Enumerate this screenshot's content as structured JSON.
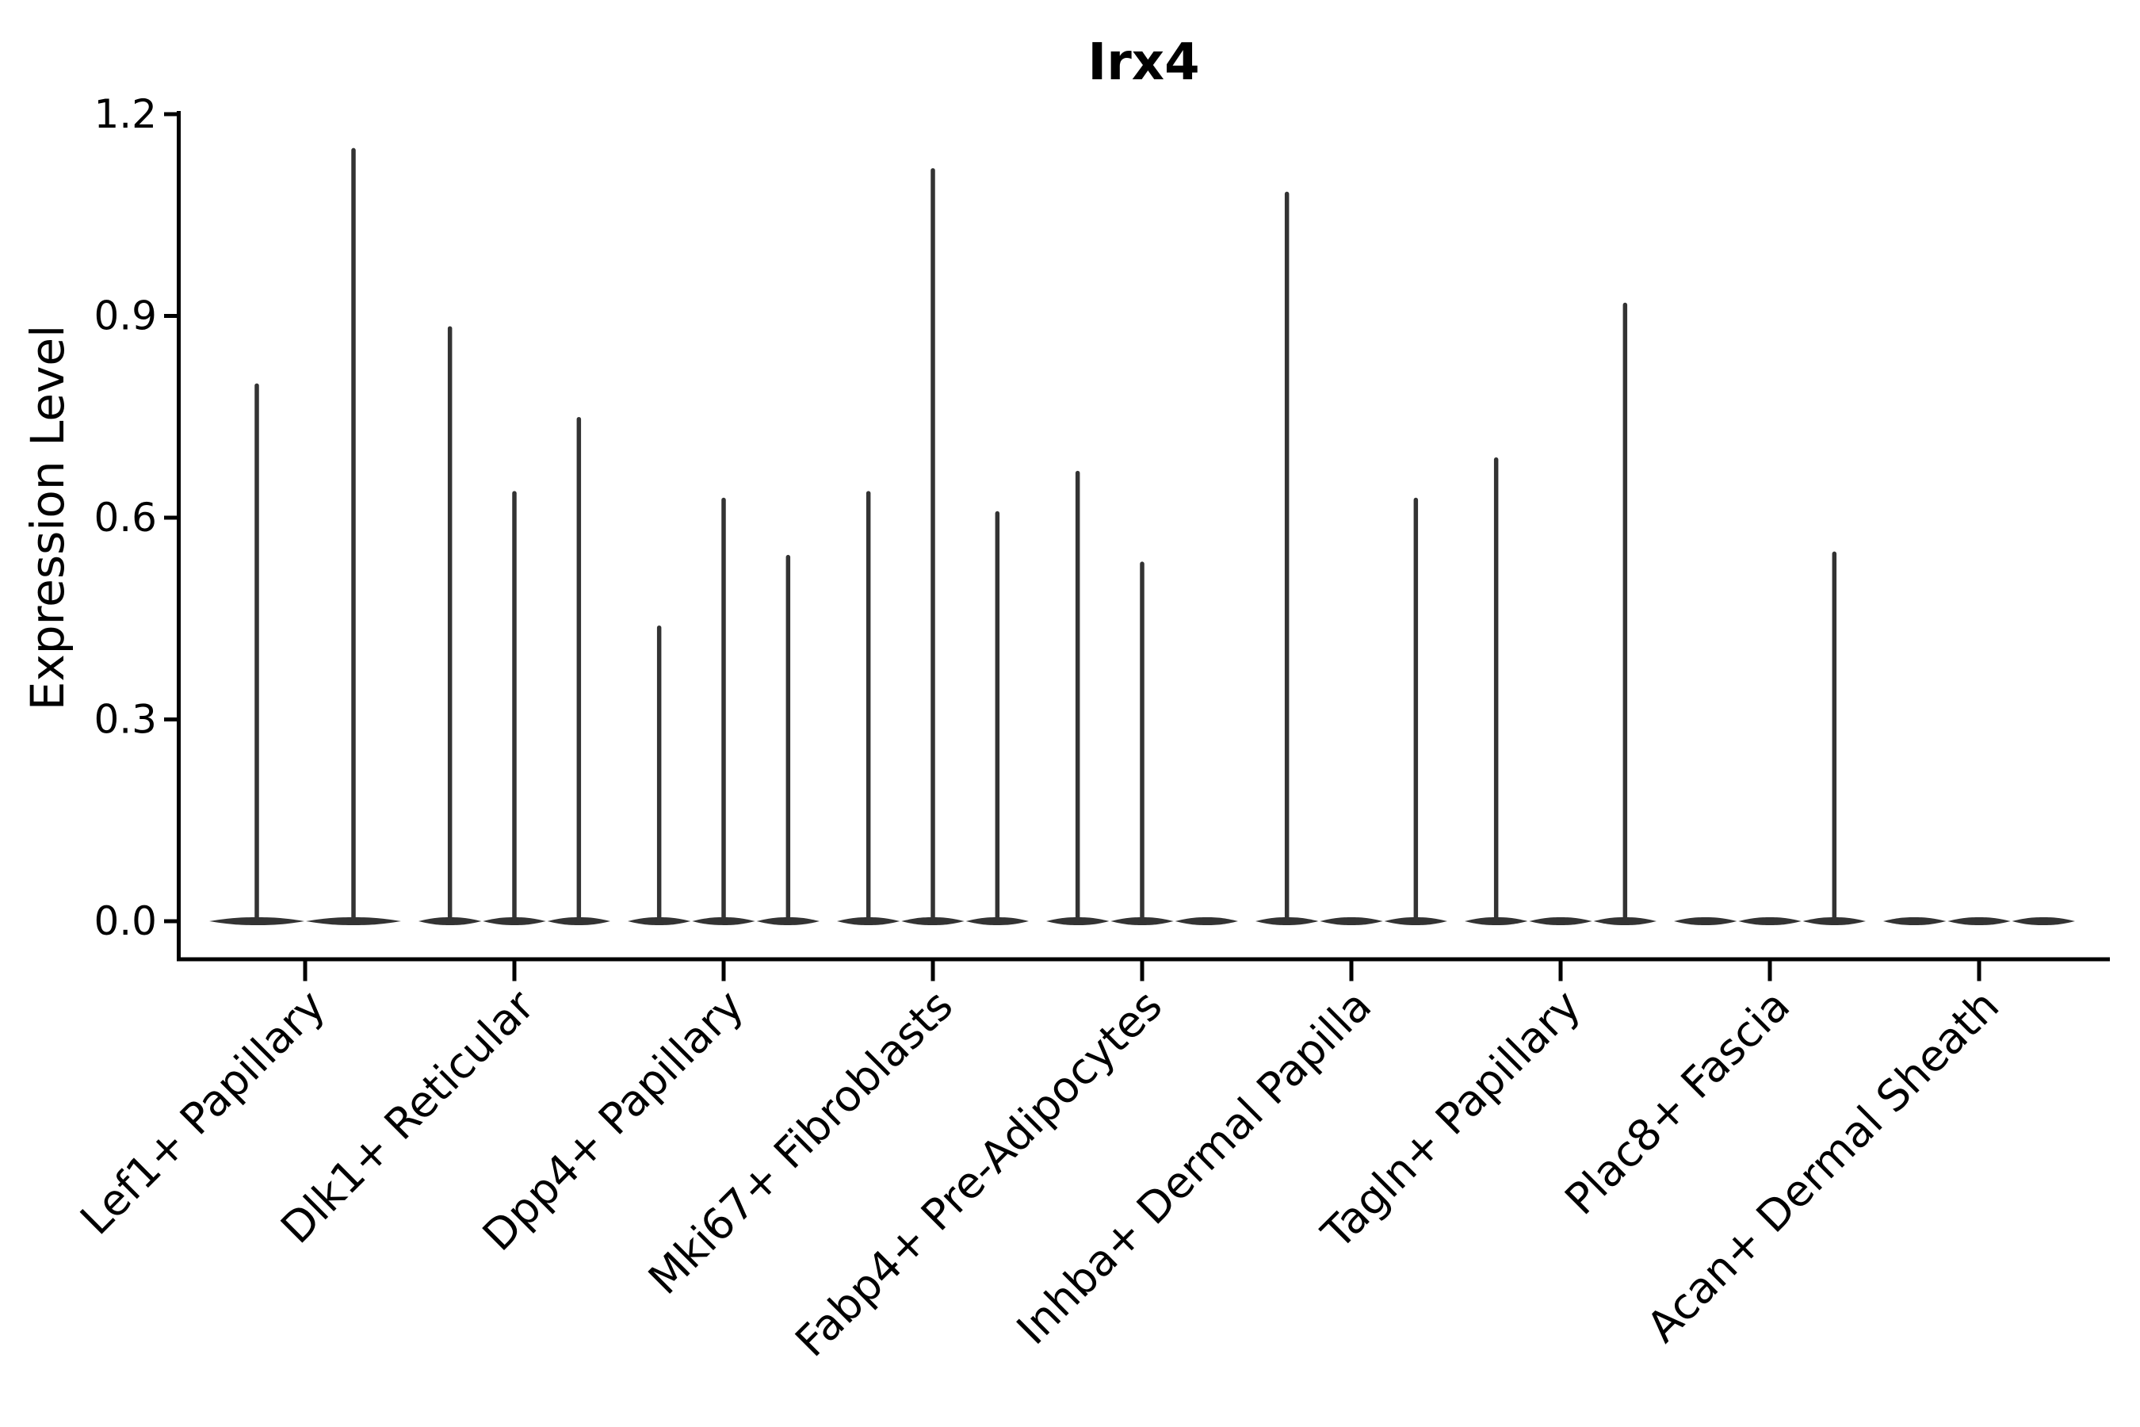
{
  "chart_data": {
    "type": "violin",
    "title": "Irx4",
    "ylabel": "Expression Level",
    "xlabel": "",
    "ylim": [
      0,
      1.2
    ],
    "y_ticks": [
      0.0,
      0.3,
      0.6,
      0.9,
      1.2
    ],
    "y_tick_labels": [
      "0.0",
      "0.3",
      "0.6",
      "0.9",
      "1.2"
    ],
    "grid": false,
    "legend": "none",
    "axis_color": "#000000",
    "violin_color": "#333333",
    "background_color": "#ffffff",
    "categories": [
      "Lef1+ Papillary",
      "Dlk1+ Reticular",
      "Dpp4+ Papillary",
      "Mki67+ Fibroblasts",
      "Fabp4+ Pre-Adipocytes",
      "Inhba+ Dermal Papilla",
      "Tagln+ Papillary",
      "Plac8+ Fascia",
      "Acan+ Dermal Sheath"
    ],
    "groups": [
      {
        "category": "Lef1+ Papillary",
        "violin_max_values": [
          0.8,
          1.15
        ]
      },
      {
        "category": "Dlk1+ Reticular",
        "violin_max_values": [
          0.885,
          0.64,
          0.75
        ]
      },
      {
        "category": "Dpp4+ Papillary",
        "violin_max_values": [
          0.44,
          0.63,
          0.545
        ]
      },
      {
        "category": "Mki67+ Fibroblasts",
        "violin_max_values": [
          0.64,
          1.12,
          0.61
        ]
      },
      {
        "category": "Fabp4+ Pre-Adipocytes",
        "violin_max_values": [
          0.67,
          0.535,
          0.0
        ]
      },
      {
        "category": "Inhba+ Dermal Papilla",
        "violin_max_values": [
          1.085,
          0.0,
          0.63
        ]
      },
      {
        "category": "Tagln+ Papillary",
        "violin_max_values": [
          0.69,
          0.0,
          0.92
        ]
      },
      {
        "category": "Plac8+ Fascia",
        "violin_max_values": [
          0.0,
          0.0,
          0.55
        ]
      },
      {
        "category": "Acan+ Dermal Sheath",
        "violin_max_values": [
          0.0,
          0.0,
          0.0
        ]
      }
    ],
    "description": "Each violin is a near-zero-inflated expression distribution: a wide flat body at 0 expression and a thin spike reaching the violin's maximum expression value."
  }
}
